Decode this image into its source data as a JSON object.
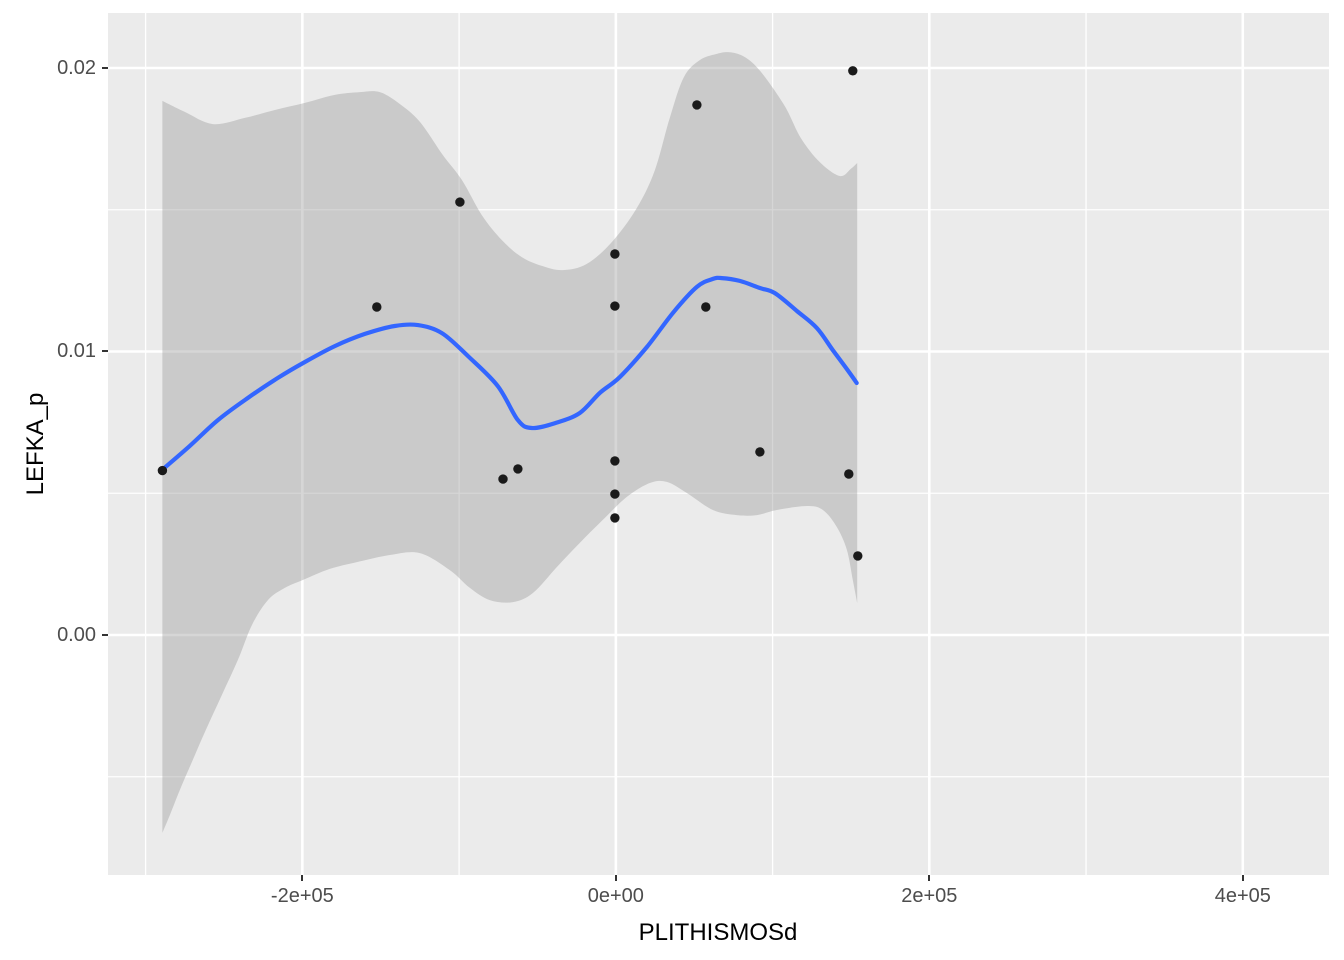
{
  "chart_data": {
    "type": "scatter",
    "title": "",
    "xlabel": "PLITHISMOSd",
    "ylabel": "LEFKA_p",
    "legend": "none",
    "grid": true,
    "x_domain": [
      -324000,
      455000
    ],
    "y_domain": [
      -0.008466,
      0.02194
    ],
    "x_ticks": [
      {
        "v": -200000,
        "label": "-2e+05"
      },
      {
        "v": 0,
        "label": "0e+00"
      },
      {
        "v": 200000,
        "label": "2e+05"
      },
      {
        "v": 400000,
        "label": "4e+05"
      }
    ],
    "y_ticks": [
      {
        "v": 0,
        "label": "0.00"
      },
      {
        "v": 0.01,
        "label": "0.01"
      },
      {
        "v": 0.02,
        "label": "0.02"
      }
    ],
    "x_minor_ticks": [
      -300000,
      -100000,
      100000,
      300000
    ],
    "y_minor_ticks": [
      -0.005,
      0.005,
      0.015
    ],
    "colors": {
      "panel_bg": "#EBEBEB",
      "grid": "#FFFFFF",
      "ribbon": "rgba(153,153,153,0.4)",
      "smooth": "#3366FF",
      "point": "#1A1A1A",
      "tick_text": "#4D4D4D",
      "tick_mark": "#333333",
      "title_text": "#000000"
    },
    "points": [
      [
        -289300,
        0.0058
      ],
      [
        -152500,
        0.01157
      ],
      [
        -99500,
        0.01527
      ],
      [
        -72000,
        0.0055
      ],
      [
        -62500,
        0.00586
      ],
      [
        -600,
        0.01344
      ],
      [
        -600,
        0.0116
      ],
      [
        -600,
        0.00614
      ],
      [
        -600,
        0.00497
      ],
      [
        -600,
        0.00413
      ],
      [
        51700,
        0.0187
      ],
      [
        57400,
        0.01157
      ],
      [
        91900,
        0.00646
      ],
      [
        148600,
        0.00568
      ],
      [
        151200,
        0.0199
      ],
      [
        154400,
        0.00279
      ]
    ],
    "smooth_line": [
      [
        -289600,
        0.00582
      ],
      [
        -271800,
        0.00667
      ],
      [
        -253900,
        0.00758
      ],
      [
        -234800,
        0.00836
      ],
      [
        -215600,
        0.00907
      ],
      [
        -198400,
        0.00963
      ],
      [
        -179300,
        0.01019
      ],
      [
        -160100,
        0.01062
      ],
      [
        -141000,
        0.0109
      ],
      [
        -126300,
        0.01093
      ],
      [
        -111000,
        0.01065
      ],
      [
        -94400,
        0.00984
      ],
      [
        -75300,
        0.00878
      ],
      [
        -62500,
        0.00758
      ],
      [
        -53600,
        0.0073
      ],
      [
        -38300,
        0.00748
      ],
      [
        -23000,
        0.00783
      ],
      [
        -10200,
        0.00854
      ],
      [
        2600,
        0.0091
      ],
      [
        19800,
        0.01016
      ],
      [
        36400,
        0.01136
      ],
      [
        51700,
        0.01228
      ],
      [
        61900,
        0.01256
      ],
      [
        67600,
        0.01259
      ],
      [
        79100,
        0.01249
      ],
      [
        91900,
        0.01224
      ],
      [
        101400,
        0.01206
      ],
      [
        115500,
        0.01143
      ],
      [
        128200,
        0.01083
      ],
      [
        138400,
        0.01005
      ],
      [
        147400,
        0.00938
      ],
      [
        153700,
        0.00889
      ]
    ],
    "ribbon_upper": [
      [
        -289300,
        0.01884
      ],
      [
        -275000,
        0.01845
      ],
      [
        -257100,
        0.01802
      ],
      [
        -236700,
        0.01824
      ],
      [
        -217500,
        0.01852
      ],
      [
        -198400,
        0.01877
      ],
      [
        -179300,
        0.01905
      ],
      [
        -163300,
        0.01915
      ],
      [
        -150600,
        0.01915
      ],
      [
        -137800,
        0.01873
      ],
      [
        -125000,
        0.0181
      ],
      [
        -110400,
        0.01693
      ],
      [
        -98200,
        0.01605
      ],
      [
        -85500,
        0.01481
      ],
      [
        -72700,
        0.01393
      ],
      [
        -60000,
        0.01333
      ],
      [
        -47200,
        0.01302
      ],
      [
        -33800,
        0.01287
      ],
      [
        -18500,
        0.01309
      ],
      [
        -2600,
        0.01386
      ],
      [
        13400,
        0.01506
      ],
      [
        24900,
        0.0164
      ],
      [
        34400,
        0.01824
      ],
      [
        43400,
        0.01968
      ],
      [
        53600,
        0.02028
      ],
      [
        63800,
        0.02049
      ],
      [
        71500,
        0.02056
      ],
      [
        79700,
        0.02046
      ],
      [
        88000,
        0.02014
      ],
      [
        97000,
        0.01954
      ],
      [
        108500,
        0.01859
      ],
      [
        118000,
        0.01753
      ],
      [
        130100,
        0.01668
      ],
      [
        142900,
        0.01619
      ],
      [
        149900,
        0.01644
      ],
      [
        154000,
        0.01665
      ]
    ],
    "ribbon_lower": [
      [
        -289300,
        -0.00698
      ],
      [
        -284500,
        -0.00635
      ],
      [
        -278200,
        -0.00547
      ],
      [
        -270500,
        -0.00448
      ],
      [
        -261600,
        -0.00335
      ],
      [
        -251400,
        -0.00212
      ],
      [
        -241100,
        -0.00088
      ],
      [
        -232200,
        0.00035
      ],
      [
        -222000,
        0.00123
      ],
      [
        -211200,
        0.00166
      ],
      [
        -199700,
        0.00194
      ],
      [
        -182500,
        0.00233
      ],
      [
        -165200,
        0.00257
      ],
      [
        -144200,
        0.00282
      ],
      [
        -125000,
        0.00289
      ],
      [
        -105900,
        0.00229
      ],
      [
        -93100,
        0.00166
      ],
      [
        -80400,
        0.00123
      ],
      [
        -65700,
        0.00116
      ],
      [
        -52900,
        0.00148
      ],
      [
        -37600,
        0.0024
      ],
      [
        -23000,
        0.00325
      ],
      [
        -8300,
        0.00406
      ],
      [
        7000,
        0.00487
      ],
      [
        21700,
        0.00536
      ],
      [
        32500,
        0.0054
      ],
      [
        45300,
        0.00501
      ],
      [
        61900,
        0.00441
      ],
      [
        77200,
        0.00423
      ],
      [
        90000,
        0.00423
      ],
      [
        102700,
        0.00441
      ],
      [
        121900,
        0.00455
      ],
      [
        132100,
        0.00441
      ],
      [
        141000,
        0.00381
      ],
      [
        147400,
        0.003
      ],
      [
        151200,
        0.00194
      ],
      [
        154000,
        0.00113
      ]
    ]
  }
}
